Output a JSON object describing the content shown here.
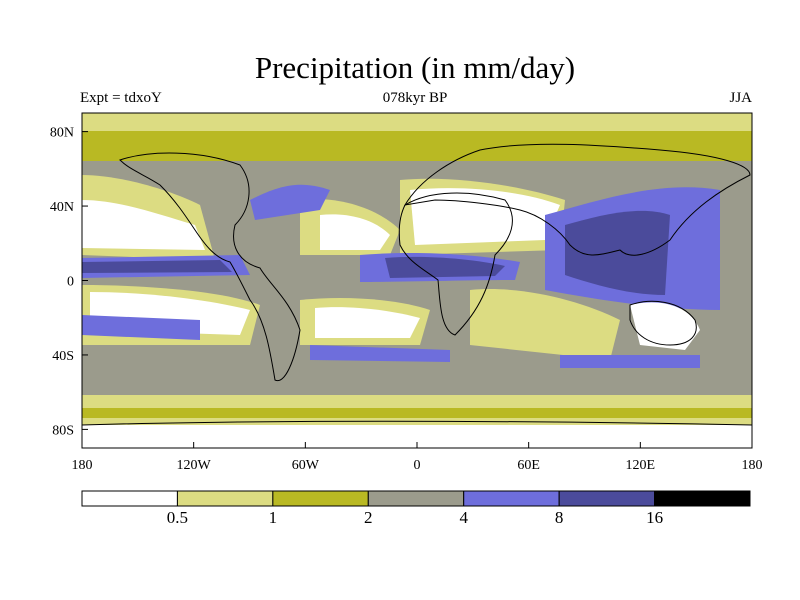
{
  "header": {
    "title": "Precipitation (in mm/day)",
    "subtitle_left": "Expt = tdxoY",
    "subtitle_center": "078kyr BP",
    "subtitle_right": "JJA"
  },
  "axes": {
    "y_ticks": [
      {
        "label": "80N",
        "lat": 80
      },
      {
        "label": "40N",
        "lat": 40
      },
      {
        "label": "0",
        "lat": 0
      },
      {
        "label": "40S",
        "lat": -40
      },
      {
        "label": "80S",
        "lat": -80
      }
    ],
    "x_ticks": [
      {
        "label": "180",
        "lon": -180
      },
      {
        "label": "120W",
        "lon": -120
      },
      {
        "label": "60W",
        "lon": -60
      },
      {
        "label": "0",
        "lon": 0
      },
      {
        "label": "60E",
        "lon": 60
      },
      {
        "label": "120E",
        "lon": 120
      },
      {
        "label": "180",
        "lon": 180
      }
    ],
    "lon_range": [
      -180,
      180
    ],
    "lat_range": [
      -90,
      90
    ]
  },
  "colorbar": {
    "colors": [
      "#ffffff",
      "#dcdc82",
      "#b9b923",
      "#9b9b8c",
      "#6e6edc",
      "#4b4b9b",
      "#000000"
    ],
    "labels": [
      "0.5",
      "1",
      "2",
      "4",
      "8",
      "16"
    ]
  },
  "map_colors": {
    "c0": "#ffffff",
    "c1": "#dcdc82",
    "c2": "#b9b923",
    "c3": "#9b9b8c",
    "c4": "#6e6edc",
    "c5": "#4b4b9b"
  }
}
